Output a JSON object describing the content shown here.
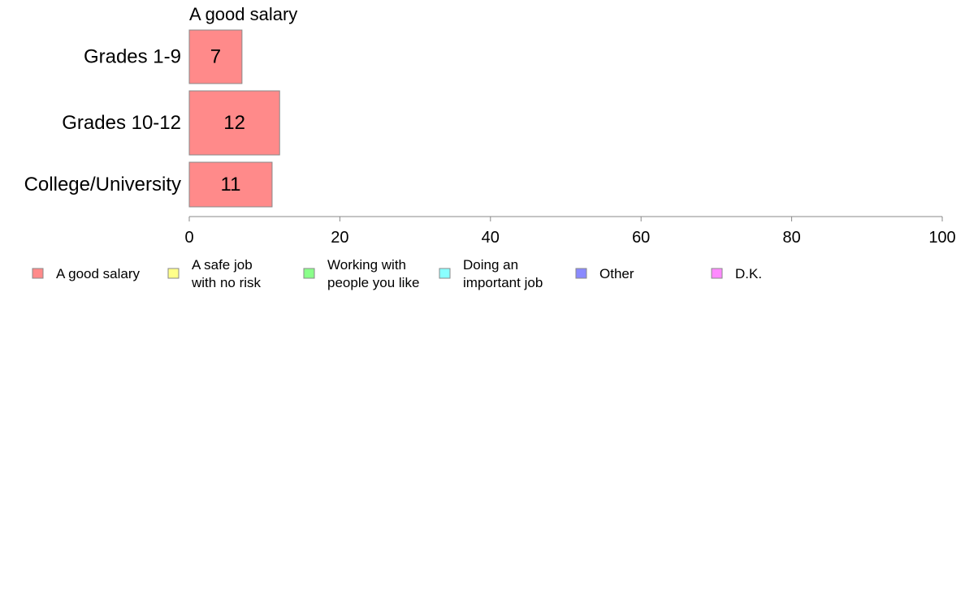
{
  "chart_data": {
    "type": "bar",
    "orientation": "horizontal",
    "title": "A good salary",
    "categories": [
      "Grades 1-9",
      "Grades 10-12",
      "College/University"
    ],
    "series": [
      {
        "name": "A good salary",
        "values": [
          7,
          12,
          11
        ],
        "color": "#ff8a8a"
      }
    ],
    "data_labels": [
      "7",
      "12",
      "11"
    ],
    "xlim": [
      0,
      100
    ],
    "x_ticks": [
      0,
      20,
      40,
      60,
      80,
      100
    ],
    "x_tick_labels": [
      "0",
      "20",
      "40",
      "60",
      "80",
      "100"
    ],
    "grid": false,
    "legend_position": "bottom",
    "legend": [
      {
        "lines": [
          "A good salary"
        ],
        "color": "#ff8a8a"
      },
      {
        "lines": [
          "A safe job",
          "with no risk"
        ],
        "color": "#ffff8a"
      },
      {
        "lines": [
          "Working with",
          "people you like"
        ],
        "color": "#8aff8a"
      },
      {
        "lines": [
          "Doing an",
          "important job"
        ],
        "color": "#8affff"
      },
      {
        "lines": [
          "Other"
        ],
        "color": "#8a8aff"
      },
      {
        "lines": [
          "D.K."
        ],
        "color": "#ff8aff"
      }
    ],
    "colors": {
      "bar_stroke": "#888888",
      "axis": "#888888",
      "legend_stroke": "#888888"
    }
  }
}
